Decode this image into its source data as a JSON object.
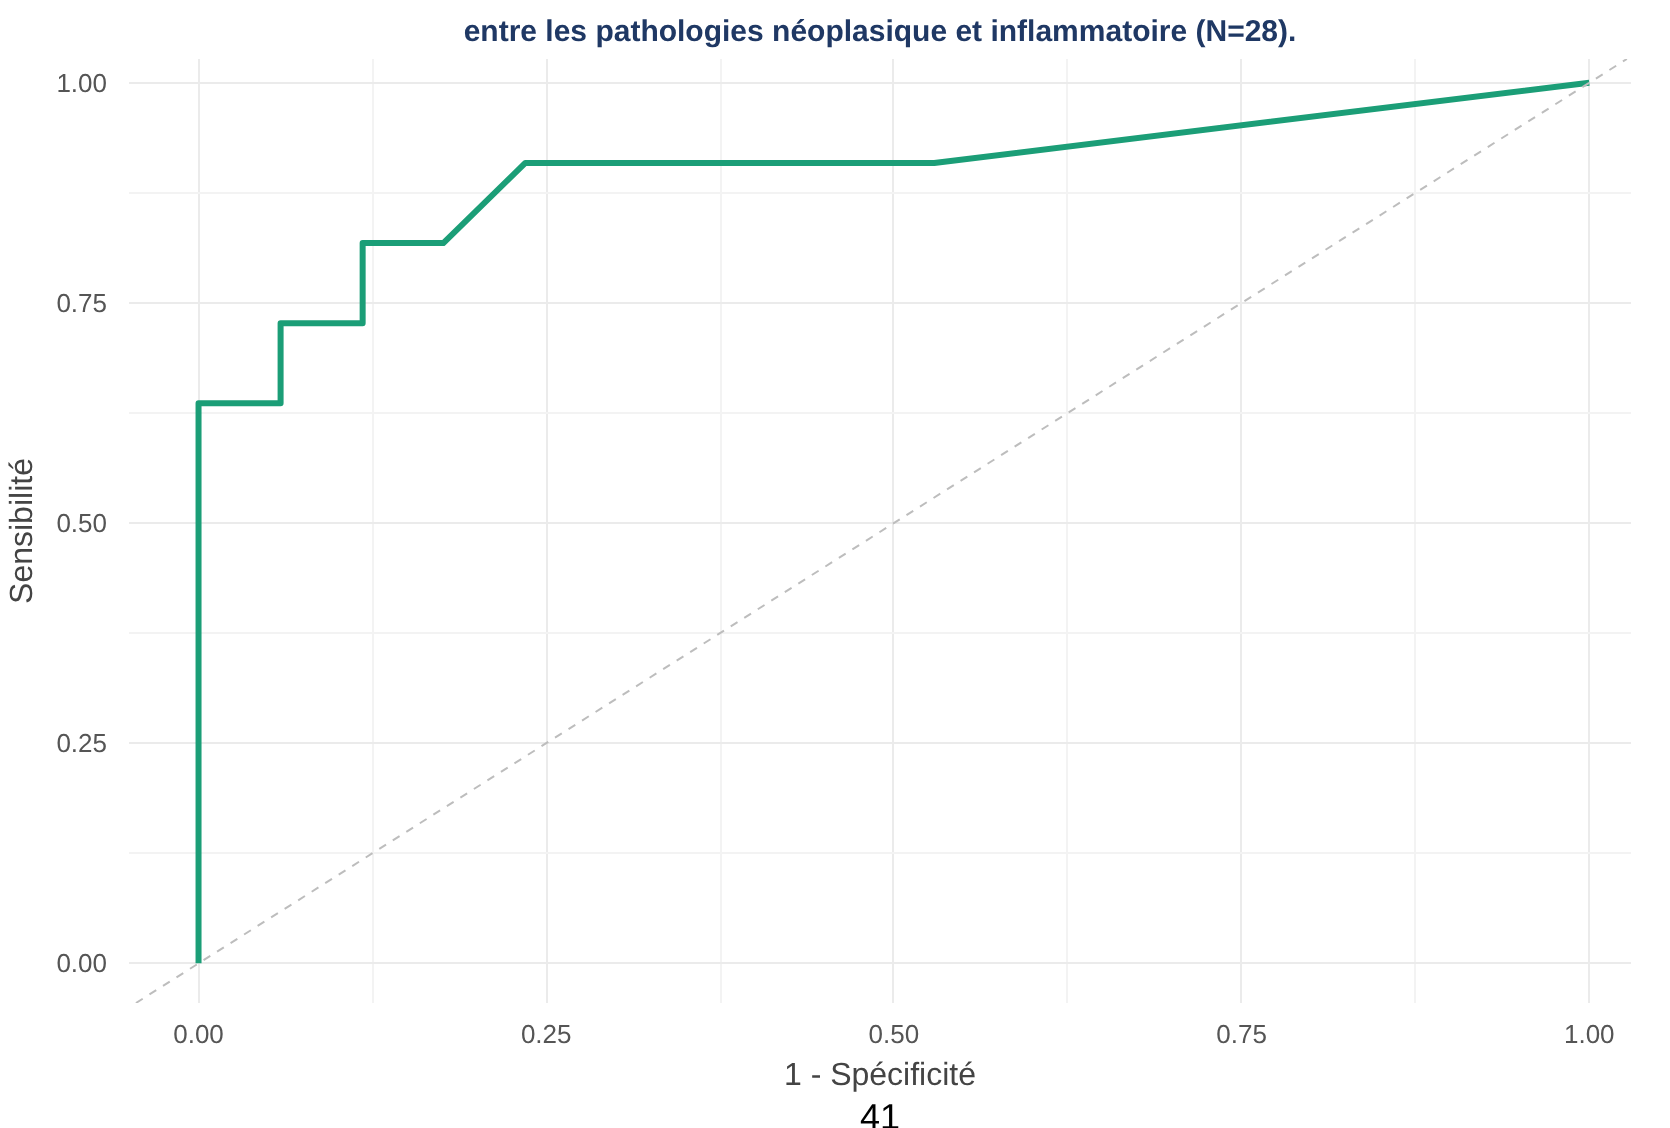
{
  "chart_data": {
    "type": "line",
    "title": "entre les pathologies néoplasique et inflammatoire (N=28).",
    "xlabel": "1 - Spécificité",
    "ylabel": "Sensibilité",
    "xlim": [
      -0.05,
      1.03
    ],
    "ylim": [
      -0.045,
      1.027
    ],
    "xticks": [
      {
        "value": 0,
        "label": "0.00"
      },
      {
        "value": 0.25,
        "label": "0.25"
      },
      {
        "value": 0.5,
        "label": "0.50"
      },
      {
        "value": 0.75,
        "label": "0.75"
      },
      {
        "value": 1,
        "label": "1.00"
      }
    ],
    "yticks": [
      {
        "value": 0,
        "label": "0.00"
      },
      {
        "value": 0.25,
        "label": "0.25"
      },
      {
        "value": 0.5,
        "label": "0.50"
      },
      {
        "value": 0.75,
        "label": "0.75"
      },
      {
        "value": 1,
        "label": "1.00"
      }
    ],
    "grid": true,
    "marker": "none",
    "series": [
      {
        "color": "#1b9e77",
        "x": [
          0,
          0,
          0.059,
          0.059,
          0.118,
          0.118,
          0.176,
          0.235,
          0.529,
          1
        ],
        "values": [
          0,
          0.636,
          0.636,
          0.727,
          0.727,
          0.818,
          0.818,
          0.909,
          0.909,
          1
        ],
        "line_style": "solid"
      },
      {
        "color": "#bdbdbd",
        "x": [
          -0.045,
          1.027
        ],
        "values": [
          -0.045,
          1.027
        ],
        "line_style": "dashed"
      }
    ],
    "annotations": [
      "41"
    ]
  }
}
